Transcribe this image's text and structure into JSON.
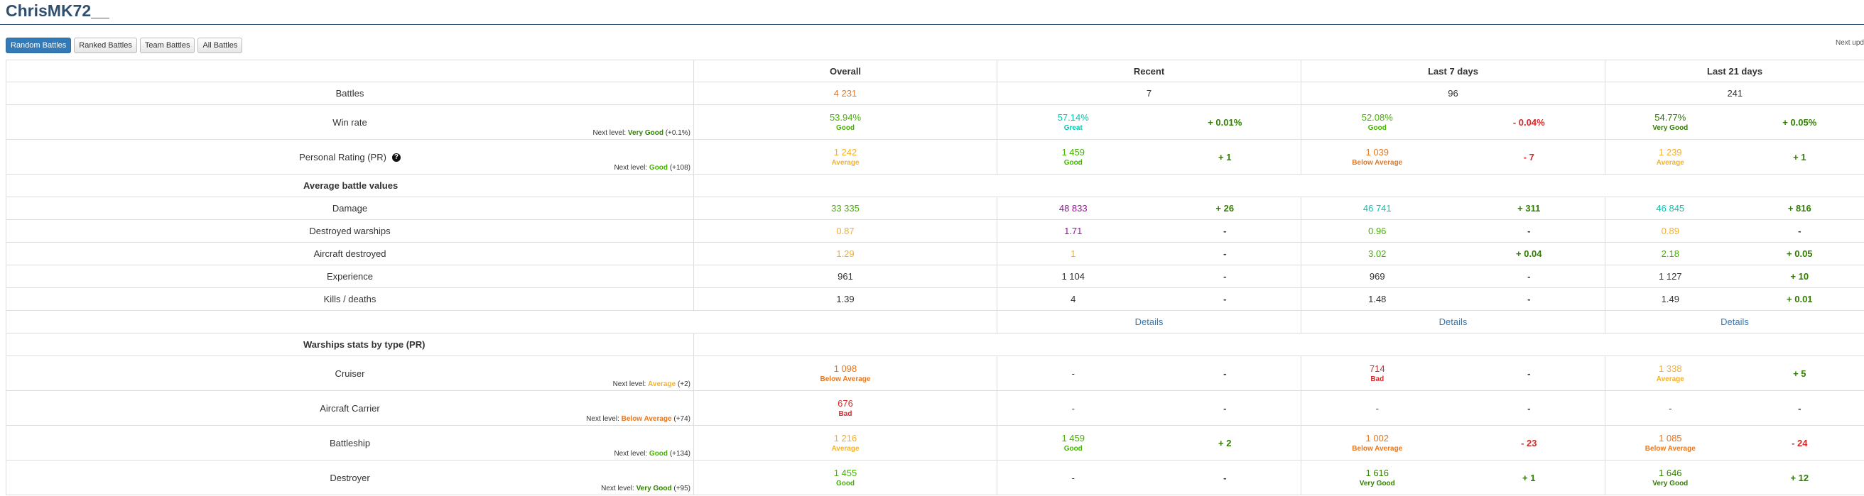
{
  "header": {
    "title": "ChrisMK72__",
    "tabs": [
      "Random Battles",
      "Ranked Battles",
      "Team Battles",
      "All Battles"
    ],
    "right_text": "Next upd"
  },
  "table": {
    "columns": [
      "Overall",
      "Recent",
      "Last 7 days",
      "Last 21 days"
    ],
    "rows": [
      {
        "label": "Battles",
        "cells": [
          {
            "value": "4 231",
            "color": "#e8771f"
          },
          {
            "value": "7",
            "color": "#333333"
          },
          {
            "value": "96",
            "color": "#333333"
          },
          {
            "value": "241",
            "color": "#333333"
          }
        ]
      },
      {
        "label": "Win rate",
        "note": {
          "prefix": "Next level:",
          "level": "Very Good",
          "color": "#318000",
          "gain": "(+0.1%)"
        },
        "cells": [
          {
            "value": "53.94%",
            "rating": "Good",
            "color": "#44b300"
          },
          {
            "value": "57.14%",
            "rating": "Great",
            "color": "#02c9b3",
            "delta": "+ 0.01%",
            "delta_color": "#318000"
          },
          {
            "value": "52.08%",
            "rating": "Good",
            "color": "#44b300",
            "delta": "- 0.04%",
            "delta_color": "#d42a2a"
          },
          {
            "value": "54.77%",
            "rating": "Very Good",
            "color": "#318000",
            "delta": "+ 0.05%",
            "delta_color": "#318000"
          }
        ]
      },
      {
        "label": "Personal Rating (PR)",
        "note": {
          "prefix": "Next level:",
          "level": "Good",
          "color": "#44b300",
          "gain": "(+108)"
        },
        "cells": [
          {
            "value": "1 242",
            "rating": "Average",
            "color": "#f5b02a"
          },
          {
            "value": "1 459",
            "rating": "Good",
            "color": "#44b300",
            "delta": "+ 1",
            "delta_color": "#318000"
          },
          {
            "value": "1 039",
            "rating": "Below Average",
            "color": "#e8771f",
            "delta": "- 7",
            "delta_color": "#d42a2a"
          },
          {
            "value": "1 239",
            "rating": "Average",
            "color": "#f5b02a",
            "delta": "+ 1",
            "delta_color": "#318000"
          }
        ]
      }
    ],
    "sections": [
      {
        "title": "Average battle values",
        "rows": [
          {
            "label": "Damage",
            "cells": [
              {
                "value": "33 335",
                "color": "#44b300"
              },
              {
                "value": "48 833",
                "color": "#a00da0",
                "delta": "+ 26",
                "delta_color": "#318000"
              },
              {
                "value": "46 741",
                "color": "#02c9b3",
                "delta": "+ 311",
                "delta_color": "#318000"
              },
              {
                "value": "46 845",
                "color": "#02c9b3",
                "delta": "+ 816",
                "delta_color": "#318000"
              }
            ]
          },
          {
            "label": "Destroyed warships",
            "cells": [
              {
                "value": "0.87",
                "color": "#f5b02a"
              },
              {
                "value": "1.71",
                "color": "#a00da0",
                "delta": "-",
                "delta_color": "#333333"
              },
              {
                "value": "0.96",
                "color": "#44b300",
                "delta": "-",
                "delta_color": "#333333"
              },
              {
                "value": "0.89",
                "color": "#f5b02a",
                "delta": "-",
                "delta_color": "#333333"
              }
            ]
          },
          {
            "label": "Aircraft destroyed",
            "cells": [
              {
                "value": "1.29",
                "color": "#f5b02a"
              },
              {
                "value": "1",
                "color": "#f5b02a",
                "delta": "-",
                "delta_color": "#333333"
              },
              {
                "value": "3.02",
                "color": "#44b300",
                "delta": "+ 0.04",
                "delta_color": "#318000"
              },
              {
                "value": "2.18",
                "color": "#44b300",
                "delta": "+ 0.05",
                "delta_color": "#318000"
              }
            ]
          },
          {
            "label": "Experience",
            "cells": [
              {
                "value": "961",
                "color": "#333333"
              },
              {
                "value": "1 104",
                "color": "#333333",
                "delta": "-",
                "delta_color": "#333333"
              },
              {
                "value": "969",
                "color": "#333333",
                "delta": "-",
                "delta_color": "#333333"
              },
              {
                "value": "1 127",
                "color": "#333333",
                "delta": "+ 10",
                "delta_color": "#318000"
              }
            ]
          },
          {
            "label": "Kills / deaths",
            "cells": [
              {
                "value": "1.39",
                "color": "#333333"
              },
              {
                "value": "4",
                "color": "#333333",
                "delta": "-",
                "delta_color": "#333333"
              },
              {
                "value": "1.48",
                "color": "#333333",
                "delta": "-",
                "delta_color": "#333333"
              },
              {
                "value": "1.49",
                "color": "#333333",
                "delta": "+ 0.01",
                "delta_color": "#318000"
              }
            ]
          }
        ],
        "details": [
          "Details",
          "Details",
          "Details"
        ]
      },
      {
        "title": "Warships stats by type (PR)",
        "rows": [
          {
            "label": "Cruiser",
            "note": {
              "prefix": "Next level:",
              "level": "Average",
              "color": "#f5b02a",
              "gain": "(+2)"
            },
            "cells": [
              {
                "value": "1 098",
                "rating": "Below Average",
                "color": "#e8771f"
              },
              {
                "value": "-",
                "color": "#333333",
                "delta": "-",
                "delta_color": "#333333"
              },
              {
                "value": "714",
                "rating": "Bad",
                "color": "#d42a2a",
                "delta": "-",
                "delta_color": "#333333"
              },
              {
                "value": "1 338",
                "rating": "Average",
                "color": "#f5b02a",
                "delta": "+ 5",
                "delta_color": "#318000"
              }
            ]
          },
          {
            "label": "Aircraft Carrier",
            "note": {
              "prefix": "Next level:",
              "level": "Below Average",
              "color": "#e8771f",
              "gain": "(+74)"
            },
            "cells": [
              {
                "value": "676",
                "rating": "Bad",
                "color": "#d42a2a"
              },
              {
                "value": "-",
                "color": "#333333",
                "delta": "-",
                "delta_color": "#333333"
              },
              {
                "value": "-",
                "color": "#333333",
                "delta": "-",
                "delta_color": "#333333"
              },
              {
                "value": "-",
                "color": "#333333",
                "delta": "-",
                "delta_color": "#333333"
              }
            ]
          },
          {
            "label": "Battleship",
            "note": {
              "prefix": "Next level:",
              "level": "Good",
              "color": "#44b300",
              "gain": "(+134)"
            },
            "cells": [
              {
                "value": "1 216",
                "rating": "Average",
                "color": "#f5b02a"
              },
              {
                "value": "1 459",
                "rating": "Good",
                "color": "#44b300",
                "delta": "+ 2",
                "delta_color": "#318000"
              },
              {
                "value": "1 002",
                "rating": "Below Average",
                "color": "#e8771f",
                "delta": "- 23",
                "delta_color": "#d42a2a"
              },
              {
                "value": "1 085",
                "rating": "Below Average",
                "color": "#e8771f",
                "delta": "- 24",
                "delta_color": "#d42a2a"
              }
            ]
          },
          {
            "label": "Destroyer",
            "note": {
              "prefix": "Next level:",
              "level": "Very Good",
              "color": "#318000",
              "gain": "(+95)"
            },
            "cells": [
              {
                "value": "1 455",
                "rating": "Good",
                "color": "#44b300"
              },
              {
                "value": "-",
                "color": "#333333",
                "delta": "-",
                "delta_color": "#333333"
              },
              {
                "value": "1 616",
                "rating": "Very Good",
                "color": "#318000",
                "delta": "+ 1",
                "delta_color": "#318000"
              },
              {
                "value": "1 646",
                "rating": "Very Good",
                "color": "#318000",
                "delta": "+ 12",
                "delta_color": "#318000"
              }
            ]
          }
        ]
      }
    ]
  }
}
